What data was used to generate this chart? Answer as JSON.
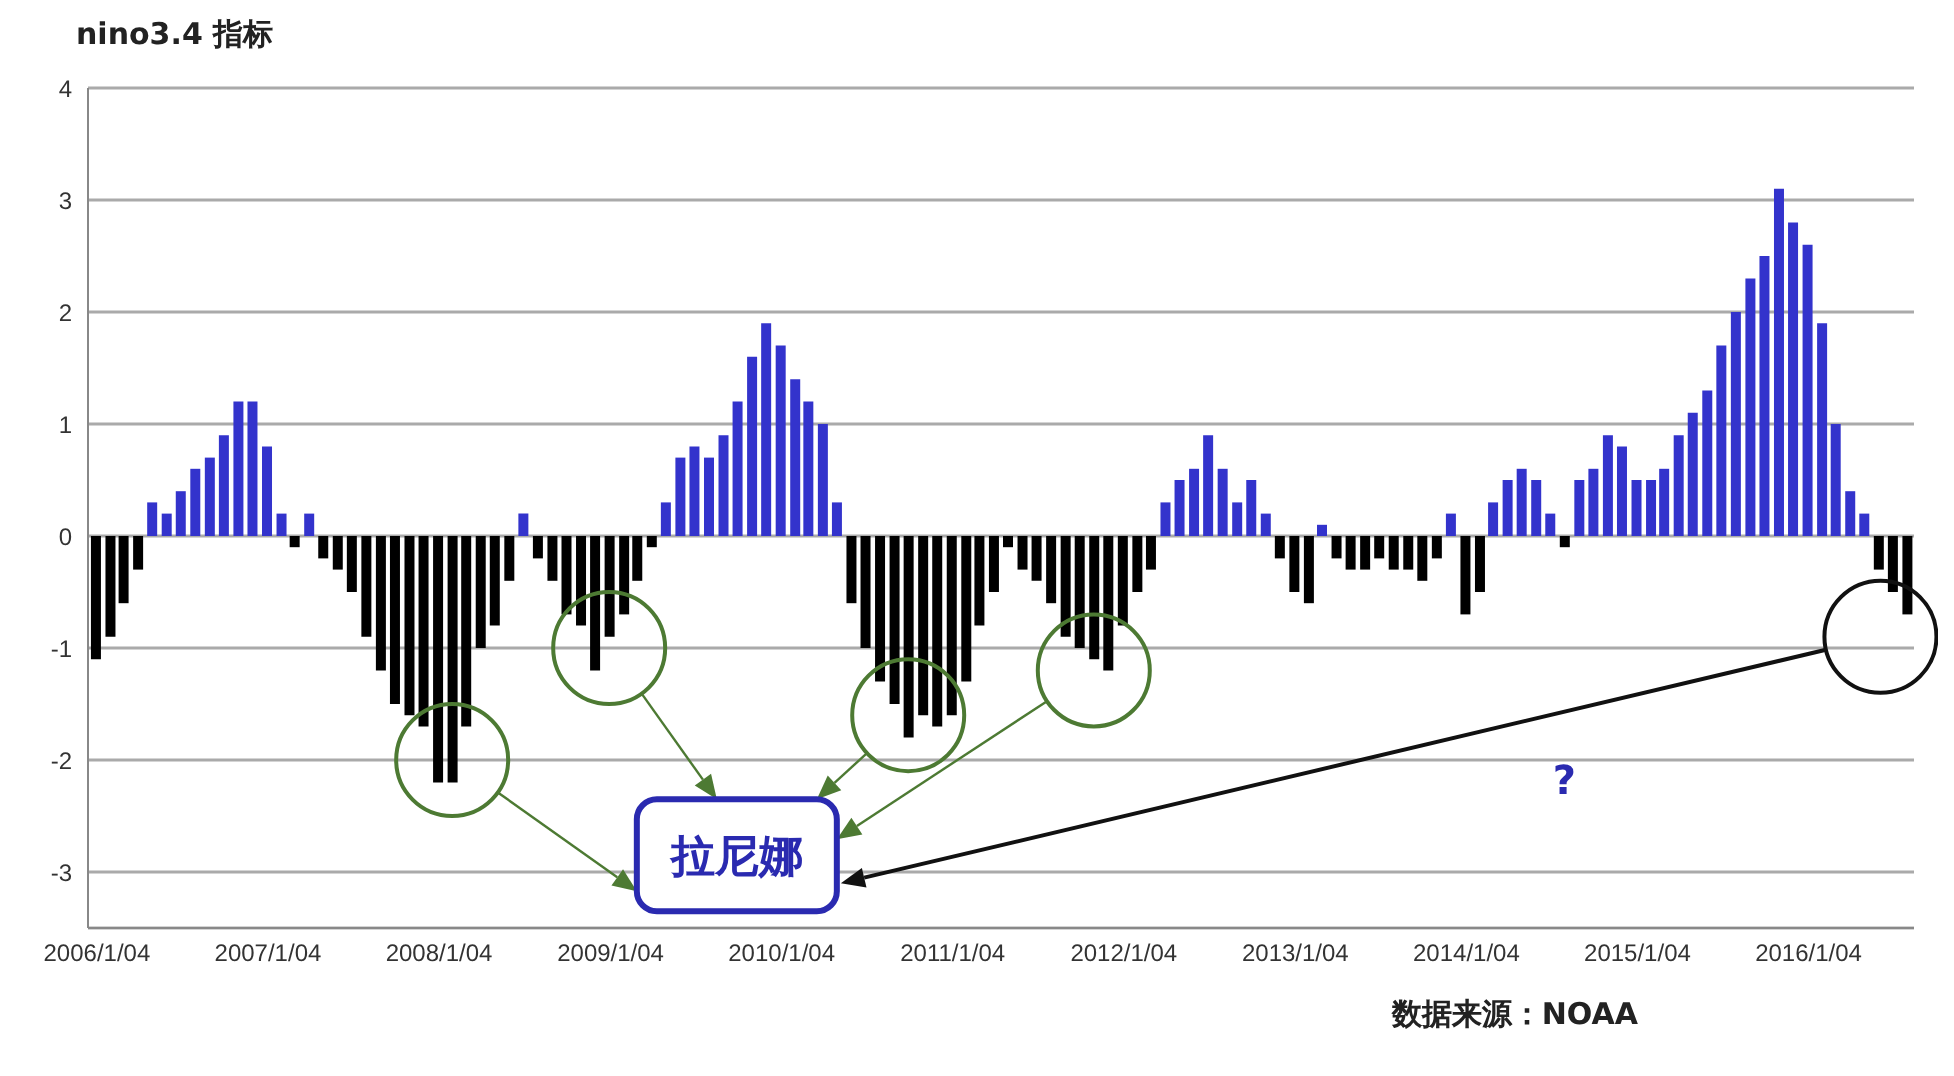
{
  "chart_data": {
    "type": "bar",
    "title": "nino3.4 指标",
    "x": [
      "2006-01",
      "2006-02",
      "2006-03",
      "2006-04",
      "2006-05",
      "2006-06",
      "2006-07",
      "2006-08",
      "2006-09",
      "2006-10",
      "2006-11",
      "2006-12",
      "2007-01",
      "2007-02",
      "2007-03",
      "2007-04",
      "2007-05",
      "2007-06",
      "2007-07",
      "2007-08",
      "2007-09",
      "2007-10",
      "2007-11",
      "2007-12",
      "2008-01",
      "2008-02",
      "2008-03",
      "2008-04",
      "2008-05",
      "2008-06",
      "2008-07",
      "2008-08",
      "2008-09",
      "2008-10",
      "2008-11",
      "2008-12",
      "2009-01",
      "2009-02",
      "2009-03",
      "2009-04",
      "2009-05",
      "2009-06",
      "2009-07",
      "2009-08",
      "2009-09",
      "2009-10",
      "2009-11",
      "2009-12",
      "2010-01",
      "2010-02",
      "2010-03",
      "2010-04",
      "2010-05",
      "2010-06",
      "2010-07",
      "2010-08",
      "2010-09",
      "2010-10",
      "2010-11",
      "2010-12",
      "2011-01",
      "2011-02",
      "2011-03",
      "2011-04",
      "2011-05",
      "2011-06",
      "2011-07",
      "2011-08",
      "2011-09",
      "2011-10",
      "2011-11",
      "2011-12",
      "2012-01",
      "2012-02",
      "2012-03",
      "2012-04",
      "2012-05",
      "2012-06",
      "2012-07",
      "2012-08",
      "2012-09",
      "2012-10",
      "2012-11",
      "2012-12",
      "2013-01",
      "2013-02",
      "2013-03",
      "2013-04",
      "2013-05",
      "2013-06",
      "2013-07",
      "2013-08",
      "2013-09",
      "2013-10",
      "2013-11",
      "2013-12",
      "2014-01",
      "2014-02",
      "2014-03",
      "2014-04",
      "2014-05",
      "2014-06",
      "2014-07",
      "2014-08",
      "2014-09",
      "2014-10",
      "2014-11",
      "2014-12",
      "2015-01",
      "2015-02",
      "2015-03",
      "2015-04",
      "2015-05",
      "2015-06",
      "2015-07",
      "2015-08",
      "2015-09",
      "2015-10",
      "2015-11",
      "2015-12",
      "2016-01",
      "2016-02",
      "2016-03",
      "2016-04",
      "2016-05",
      "2016-06",
      "2016-07",
      "2016-08"
    ],
    "values": [
      -1.1,
      -0.9,
      -0.6,
      -0.3,
      0.3,
      0.2,
      0.4,
      0.6,
      0.7,
      0.9,
      1.2,
      1.2,
      0.8,
      0.2,
      -0.1,
      0.2,
      -0.2,
      -0.3,
      -0.5,
      -0.9,
      -1.2,
      -1.5,
      -1.6,
      -1.7,
      -2.2,
      -2.2,
      -1.7,
      -1.0,
      -0.8,
      -0.4,
      0.2,
      -0.2,
      -0.4,
      -0.7,
      -0.8,
      -1.2,
      -0.9,
      -0.7,
      -0.4,
      -0.1,
      0.3,
      0.7,
      0.8,
      0.7,
      0.9,
      1.2,
      1.6,
      1.9,
      1.7,
      1.4,
      1.2,
      1.0,
      0.3,
      -0.6,
      -1.0,
      -1.3,
      -1.5,
      -1.8,
      -1.6,
      -1.7,
      -1.6,
      -1.3,
      -0.8,
      -0.5,
      -0.1,
      -0.3,
      -0.4,
      -0.6,
      -0.9,
      -1.0,
      -1.1,
      -1.2,
      -0.8,
      -0.5,
      -0.3,
      0.3,
      0.5,
      0.6,
      0.9,
      0.6,
      0.3,
      0.5,
      0.2,
      -0.2,
      -0.5,
      -0.6,
      0.1,
      -0.2,
      -0.3,
      -0.3,
      -0.2,
      -0.3,
      -0.3,
      -0.4,
      -0.2,
      0.2,
      -0.7,
      -0.5,
      0.3,
      0.5,
      0.6,
      0.5,
      0.2,
      -0.1,
      0.5,
      0.6,
      0.9,
      0.8,
      0.5,
      0.5,
      0.6,
      0.9,
      1.1,
      1.3,
      1.7,
      2.0,
      2.3,
      2.5,
      3.1,
      2.8,
      2.6,
      1.9,
      1.0,
      0.4,
      0.2,
      -0.3,
      -0.5,
      -0.7
    ],
    "colors": [
      "#000000",
      "#000000",
      "#000000",
      "#000000",
      "#3333cc",
      "#3333cc",
      "#3333cc",
      "#3333cc",
      "#3333cc",
      "#3333cc",
      "#3333cc",
      "#3333cc",
      "#3333cc",
      "#3333cc",
      "#000000",
      "#3333cc",
      "#000000",
      "#000000",
      "#000000",
      "#000000",
      "#000000",
      "#000000",
      "#000000",
      "#000000",
      "#000000",
      "#000000",
      "#000000",
      "#000000",
      "#000000",
      "#000000",
      "#3333cc",
      "#000000",
      "#000000",
      "#000000",
      "#000000",
      "#000000",
      "#000000",
      "#000000",
      "#000000",
      "#000000",
      "#3333cc",
      "#3333cc",
      "#3333cc",
      "#3333cc",
      "#3333cc",
      "#3333cc",
      "#3333cc",
      "#3333cc",
      "#3333cc",
      "#3333cc",
      "#3333cc",
      "#3333cc",
      "#3333cc",
      "#000000",
      "#000000",
      "#000000",
      "#000000",
      "#000000",
      "#000000",
      "#000000",
      "#000000",
      "#000000",
      "#000000",
      "#000000",
      "#000000",
      "#000000",
      "#000000",
      "#000000",
      "#000000",
      "#000000",
      "#000000",
      "#000000",
      "#000000",
      "#000000",
      "#000000",
      "#3333cc",
      "#3333cc",
      "#3333cc",
      "#3333cc",
      "#3333cc",
      "#3333cc",
      "#3333cc",
      "#3333cc",
      "#000000",
      "#000000",
      "#000000",
      "#3333cc",
      "#000000",
      "#000000",
      "#000000",
      "#000000",
      "#000000",
      "#000000",
      "#000000",
      "#000000",
      "#3333cc",
      "#000000",
      "#000000",
      "#3333cc",
      "#3333cc",
      "#3333cc",
      "#3333cc",
      "#3333cc",
      "#000000",
      "#3333cc",
      "#3333cc",
      "#3333cc",
      "#3333cc",
      "#3333cc",
      "#3333cc",
      "#3333cc",
      "#3333cc",
      "#3333cc",
      "#3333cc",
      "#3333cc",
      "#3333cc",
      "#3333cc",
      "#3333cc",
      "#3333cc",
      "#3333cc",
      "#3333cc",
      "#3333cc",
      "#3333cc",
      "#3333cc",
      "#3333cc",
      "#000000",
      "#000000",
      "#000000"
    ],
    "xlim": [
      "2005-12-16",
      "2016-08-16"
    ],
    "xticks": [
      {
        "value": "2006-01-04",
        "label": "2006/1/04"
      },
      {
        "value": "2007-01-04",
        "label": "2007/1/04"
      },
      {
        "value": "2008-01-04",
        "label": "2008/1/04"
      },
      {
        "value": "2009-01-04",
        "label": "2009/1/04"
      },
      {
        "value": "2010-01-04",
        "label": "2010/1/04"
      },
      {
        "value": "2011-01-04",
        "label": "2011/1/04"
      },
      {
        "value": "2012-01-04",
        "label": "2012/1/04"
      },
      {
        "value": "2013-01-04",
        "label": "2013/1/04"
      },
      {
        "value": "2014-01-04",
        "label": "2014/1/04"
      },
      {
        "value": "2015-01-04",
        "label": "2015/1/04"
      },
      {
        "value": "2016-01-04",
        "label": "2016/1/04"
      }
    ],
    "ylim": [
      -3.5,
      4
    ],
    "yticks": [
      -3,
      -2,
      -1,
      0,
      1,
      2,
      3,
      4
    ],
    "grid": "y",
    "annotations": [
      "拉尼娜",
      "?",
      "数据来源：NOAA"
    ]
  }
}
